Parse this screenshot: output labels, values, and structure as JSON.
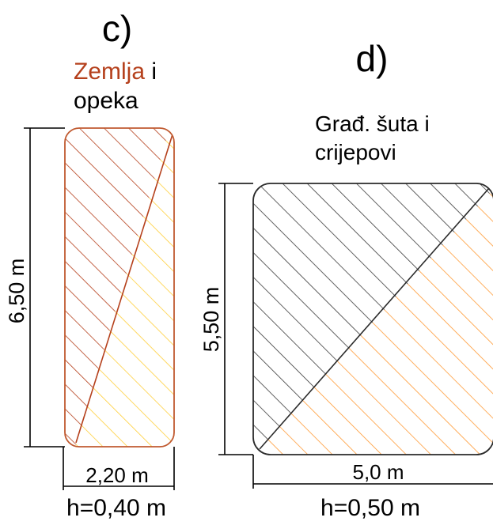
{
  "panels": [
    {
      "label": "c)",
      "legend": [
        "Zemlja",
        " i",
        "opeka"
      ],
      "height_dim": "6,50 m",
      "width_dim": "2,20 m",
      "depth": "h=0,40 m"
    },
    {
      "label": "d)",
      "legend": [
        "Građ. šuta i",
        "crijepovi"
      ],
      "height_dim": "5,50 m",
      "width_dim": "5,0 m",
      "depth": "h=0,50 m"
    }
  ],
  "colors": {
    "zemlja": "#b5401c",
    "opeka": "#ffcf3a",
    "gradjevinska_suta": "#3a3a3a",
    "crijepovi": "#ff9a35",
    "text": "#000000"
  }
}
